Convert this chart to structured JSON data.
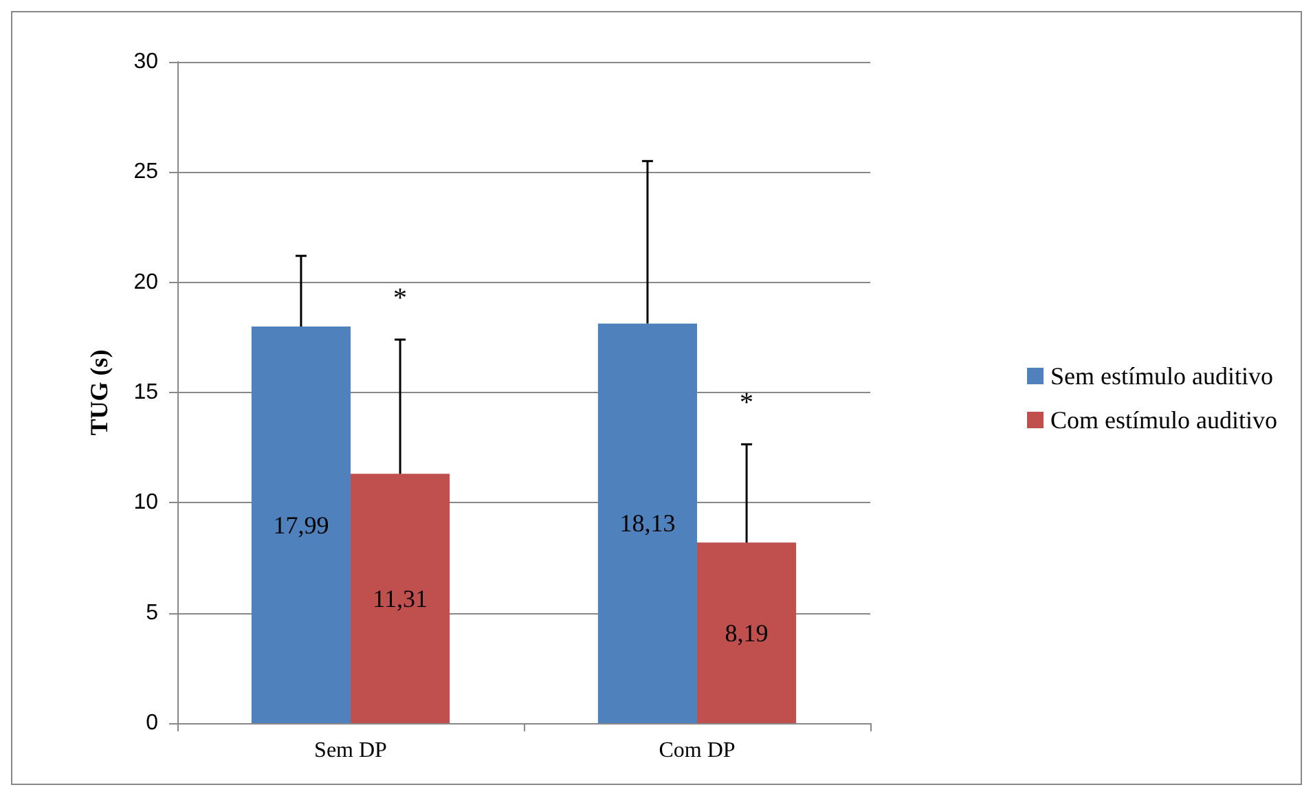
{
  "chart_data": {
    "type": "bar",
    "ylabel": "TUG (s)",
    "categories": [
      "Sem DP",
      "Com DP"
    ],
    "series": [
      {
        "name": "Sem estímulo auditivo",
        "color": "#4f81bd",
        "values": [
          17.99,
          18.13
        ],
        "value_labels": [
          "17,99",
          "18,13"
        ],
        "errors": [
          [
            17.99,
            21.2
          ],
          [
            18.13,
            25.5
          ]
        ]
      },
      {
        "name": "Com estímulo auditivo",
        "color": "#c0504d",
        "values": [
          11.31,
          8.19
        ],
        "value_labels": [
          "11,31",
          "8,19"
        ],
        "errors": [
          [
            11.31,
            17.4
          ],
          [
            8.19,
            12.65
          ]
        ]
      }
    ],
    "ylim": [
      0,
      30
    ],
    "yticks": [
      0,
      5,
      10,
      15,
      20,
      25,
      30
    ],
    "grid": "y",
    "legend": "right",
    "annotations": [
      "*",
      "*"
    ]
  }
}
